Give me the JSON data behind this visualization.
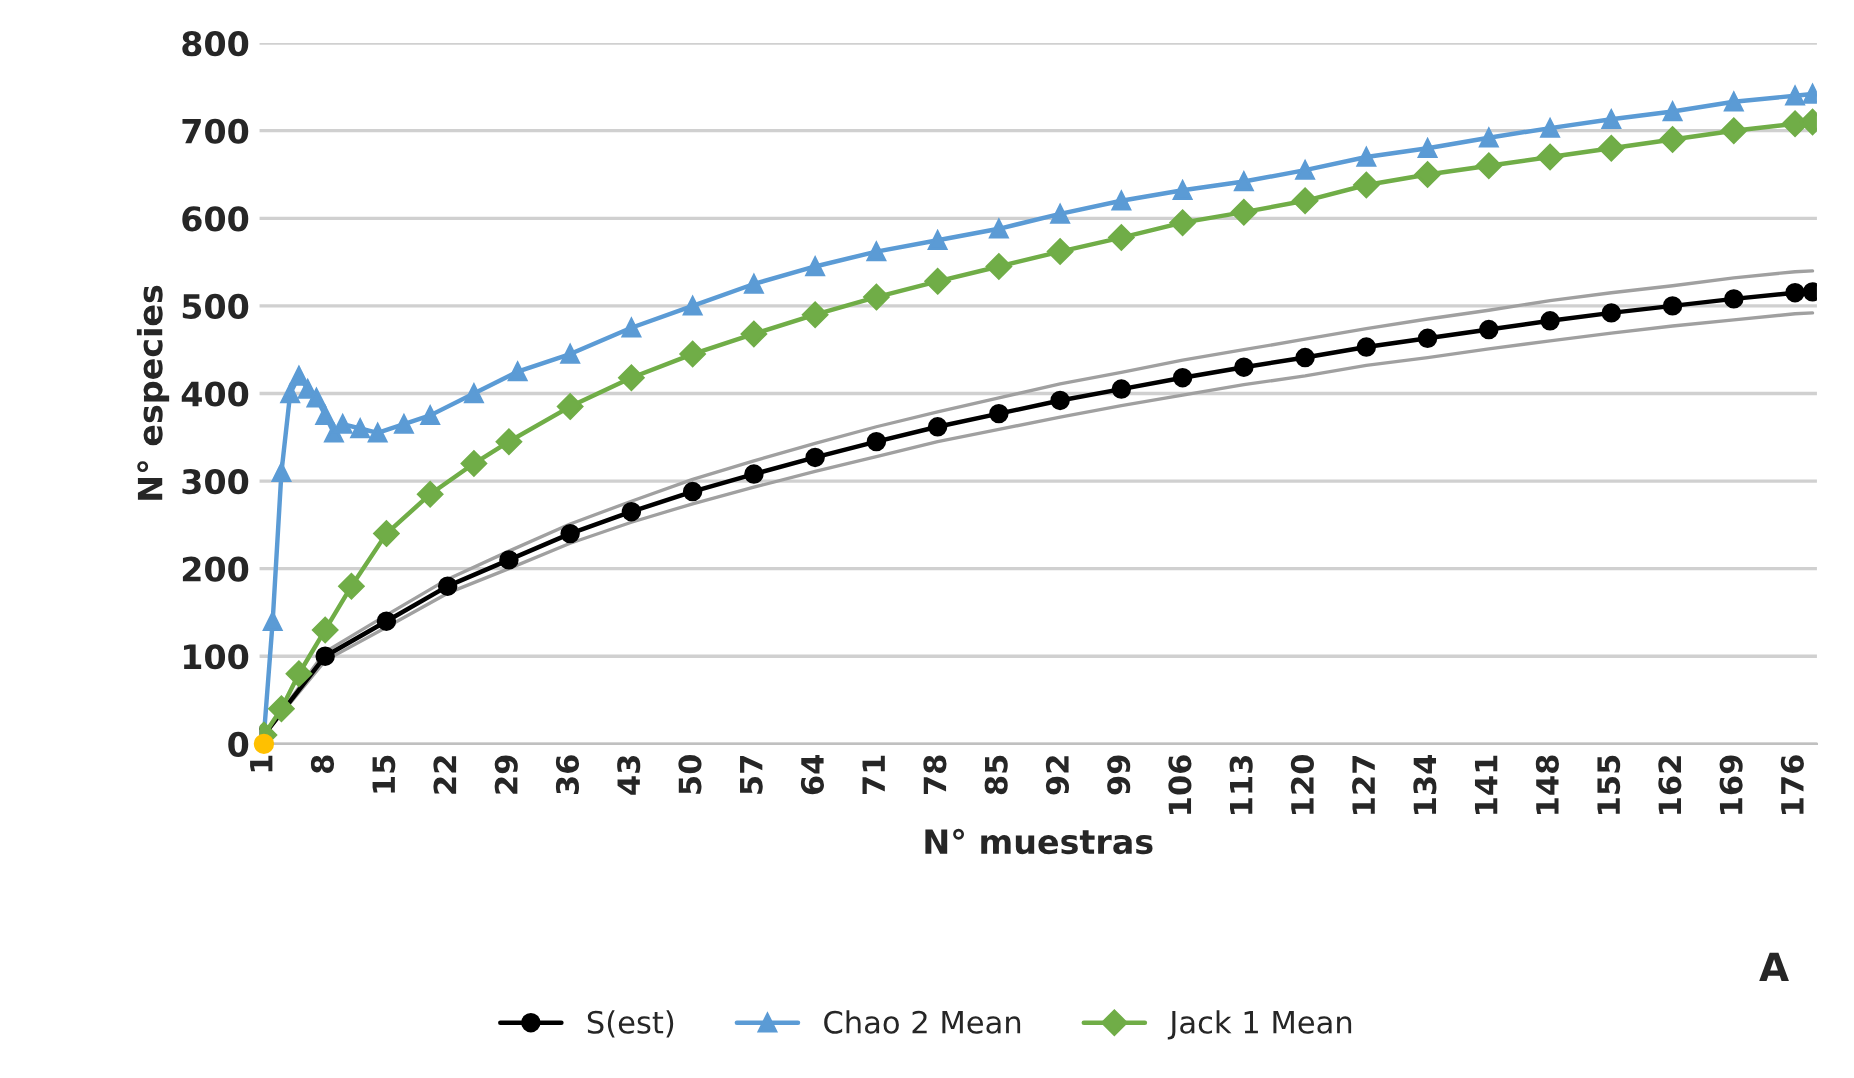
{
  "chart_data": {
    "type": "line",
    "xlabel": "N° muestras",
    "ylabel": "N° especies",
    "xlim": [
      0.5,
      178.5
    ],
    "xticks": [
      1,
      8,
      15,
      22,
      29,
      36,
      43,
      50,
      57,
      64,
      71,
      78,
      85,
      92,
      99,
      106,
      113,
      120,
      127,
      134,
      141,
      148,
      155,
      162,
      169,
      176
    ],
    "ylim": [
      0,
      800
    ],
    "yticks": [
      0,
      100,
      200,
      300,
      400,
      500,
      600,
      700,
      800
    ],
    "grid": "y",
    "legend": "bottom",
    "annotations": [
      "A"
    ],
    "series": [
      {
        "color": "#a0a0a0",
        "marker": "none",
        "x": [
          1,
          8,
          15,
          22,
          29,
          36,
          43,
          50,
          57,
          64,
          71,
          78,
          85,
          92,
          99,
          106,
          113,
          120,
          127,
          134,
          141,
          148,
          155,
          162,
          169,
          176,
          178
        ],
        "values": [
          10,
          105,
          147,
          188,
          220,
          251,
          277,
          302,
          323,
          343,
          362,
          379,
          395,
          411,
          424,
          438,
          450,
          462,
          474,
          485,
          495,
          506,
          515,
          523,
          532,
          539,
          540
        ]
      },
      {
        "color": "#a0a0a0",
        "marker": "none",
        "x": [
          1,
          8,
          15,
          22,
          29,
          36,
          43,
          50,
          57,
          64,
          71,
          78,
          85,
          92,
          99,
          106,
          113,
          120,
          127,
          134,
          141,
          148,
          155,
          162,
          169,
          176,
          178
        ],
        "values": [
          10,
          95,
          133,
          172,
          200,
          229,
          253,
          274,
          293,
          311,
          328,
          345,
          359,
          373,
          386,
          398,
          410,
          420,
          432,
          441,
          451,
          460,
          469,
          477,
          484,
          491,
          492
        ]
      },
      {
        "name": "S(est)",
        "color": "#000000",
        "marker": "circle",
        "x": [
          1,
          8,
          15,
          22,
          29,
          36,
          43,
          50,
          57,
          64,
          71,
          78,
          85,
          92,
          99,
          106,
          113,
          120,
          127,
          134,
          141,
          148,
          155,
          162,
          169,
          176,
          178
        ],
        "values": [
          10,
          100,
          140,
          180,
          210,
          240,
          265,
          288,
          308,
          327,
          345,
          362,
          377,
          392,
          405,
          418,
          430,
          441,
          453,
          463,
          473,
          483,
          492,
          500,
          508,
          515,
          516
        ]
      },
      {
        "name": "Chao 2 Mean",
        "color": "#5b9bd5",
        "marker": "triangle",
        "x": [
          1,
          2,
          3,
          4,
          5,
          6,
          7,
          8,
          9,
          10,
          12,
          14,
          17,
          20,
          25,
          30,
          36,
          43,
          50,
          57,
          64,
          71,
          78,
          85,
          92,
          99,
          106,
          113,
          120,
          127,
          134,
          141,
          148,
          155,
          162,
          169,
          176,
          178
        ],
        "values": [
          10,
          140,
          310,
          400,
          420,
          405,
          395,
          375,
          355,
          365,
          360,
          355,
          365,
          375,
          400,
          425,
          445,
          475,
          500,
          525,
          545,
          562,
          575,
          588,
          605,
          620,
          632,
          642,
          655,
          670,
          680,
          692,
          703,
          713,
          722,
          733,
          740,
          742
        ]
      },
      {
        "name": "Jack 1 Mean",
        "color": "#70ad47",
        "marker": "diamond",
        "x": [
          1,
          3,
          5,
          8,
          11,
          15,
          20,
          25,
          29,
          36,
          43,
          50,
          57,
          64,
          71,
          78,
          85,
          92,
          99,
          106,
          113,
          120,
          127,
          134,
          141,
          148,
          155,
          162,
          169,
          176,
          178
        ],
        "values": [
          10,
          40,
          80,
          130,
          180,
          240,
          285,
          320,
          345,
          385,
          418,
          445,
          468,
          490,
          510,
          528,
          545,
          562,
          578,
          595,
          607,
          620,
          638,
          650,
          660,
          670,
          680,
          690,
          700,
          708,
          710
        ]
      },
      {
        "type": "scatter",
        "color": "#ffc000",
        "marker": "circle",
        "x": [
          1
        ],
        "values": [
          0
        ]
      }
    ]
  }
}
